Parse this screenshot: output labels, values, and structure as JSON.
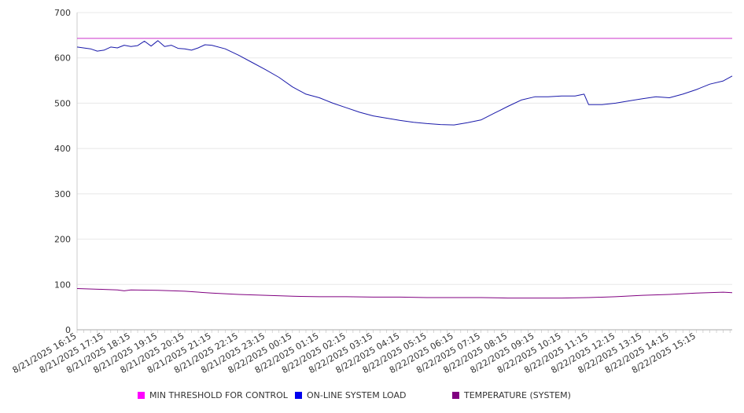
{
  "chart_data": {
    "type": "line",
    "ylim": [
      0,
      700
    ],
    "yticks": [
      0,
      100,
      200,
      300,
      400,
      500,
      600,
      700
    ],
    "grid": true,
    "legend_position": "bottom",
    "xtick_labels": [
      "8/21/2025 16:15",
      "8/21/2025 17:15",
      "8/21/2025 18:15",
      "8/21/2025 19:15",
      "8/21/2025 20:15",
      "8/21/2025 21:15",
      "8/21/2025 22:15",
      "8/21/2025 23:15",
      "8/22/2025 00:15",
      "8/22/2025 01:15",
      "8/22/2025 02:15",
      "8/22/2025 03:15",
      "8/22/2025 04:15",
      "8/22/2025 05:15",
      "8/22/2025 06:15",
      "8/22/2025 07:15",
      "8/22/2025 08:15",
      "8/22/2025 09:15",
      "8/22/2025 10:15",
      "8/22/2025 11:15",
      "8/22/2025 12:15",
      "8/22/2025 13:15",
      "8/22/2025 14:15",
      "8/22/2025 15:15"
    ],
    "x_range": [
      "8/21/2025 16:15",
      "8/22/2025 16:35"
    ],
    "series": [
      {
        "name": "MIN THRESHOLD FOR CONTROL",
        "color": "#cc33cc",
        "swatch": "#ff00ff",
        "points": [
          [
            "8/21/2025 16:15",
            643
          ],
          [
            "8/22/2025 16:35",
            643
          ]
        ]
      },
      {
        "name": "ON-LINE SYSTEM LOAD",
        "color": "#1a1aaa",
        "swatch": "#0000ee",
        "points": [
          [
            "8/21/2025 16:15",
            624
          ],
          [
            "8/21/2025 16:45",
            620
          ],
          [
            "8/21/2025 17:00",
            615
          ],
          [
            "8/21/2025 17:15",
            617
          ],
          [
            "8/21/2025 17:30",
            624
          ],
          [
            "8/21/2025 17:45",
            622
          ],
          [
            "8/21/2025 18:00",
            628
          ],
          [
            "8/21/2025 18:15",
            625
          ],
          [
            "8/21/2025 18:30",
            627
          ],
          [
            "8/21/2025 18:45",
            637
          ],
          [
            "8/21/2025 19:00",
            626
          ],
          [
            "8/21/2025 19:15",
            638
          ],
          [
            "8/21/2025 19:30",
            625
          ],
          [
            "8/21/2025 19:45",
            628
          ],
          [
            "8/21/2025 20:00",
            621
          ],
          [
            "8/21/2025 20:15",
            620
          ],
          [
            "8/21/2025 20:30",
            617
          ],
          [
            "8/21/2025 20:45",
            622
          ],
          [
            "8/21/2025 21:00",
            629
          ],
          [
            "8/21/2025 21:15",
            628
          ],
          [
            "8/21/2025 21:45",
            620
          ],
          [
            "8/21/2025 22:15",
            606
          ],
          [
            "8/21/2025 22:45",
            590
          ],
          [
            "8/21/2025 23:15",
            574
          ],
          [
            "8/21/2025 23:45",
            557
          ],
          [
            "8/22/2025 00:15",
            536
          ],
          [
            "8/22/2025 00:45",
            520
          ],
          [
            "8/22/2025 01:15",
            512
          ],
          [
            "8/22/2025 01:45",
            500
          ],
          [
            "8/22/2025 02:15",
            490
          ],
          [
            "8/22/2025 02:45",
            480
          ],
          [
            "8/22/2025 03:15",
            472
          ],
          [
            "8/22/2025 03:45",
            467
          ],
          [
            "8/22/2025 04:15",
            462
          ],
          [
            "8/22/2025 04:45",
            458
          ],
          [
            "8/22/2025 05:15",
            455
          ],
          [
            "8/22/2025 05:45",
            453
          ],
          [
            "8/22/2025 06:15",
            452
          ],
          [
            "8/22/2025 06:45",
            457
          ],
          [
            "8/22/2025 07:15",
            463
          ],
          [
            "8/22/2025 07:45",
            478
          ],
          [
            "8/22/2025 08:15",
            493
          ],
          [
            "8/22/2025 08:45",
            507
          ],
          [
            "8/22/2025 09:15",
            514
          ],
          [
            "8/22/2025 09:45",
            514
          ],
          [
            "8/22/2025 10:15",
            516
          ],
          [
            "8/22/2025 10:45",
            516
          ],
          [
            "8/22/2025 11:05",
            520
          ],
          [
            "8/22/2025 11:15",
            497
          ],
          [
            "8/22/2025 11:45",
            497
          ],
          [
            "8/22/2025 12:15",
            500
          ],
          [
            "8/22/2025 12:45",
            505
          ],
          [
            "8/22/2025 13:15",
            510
          ],
          [
            "8/22/2025 13:45",
            514
          ],
          [
            "8/22/2025 14:15",
            512
          ],
          [
            "8/22/2025 14:45",
            520
          ],
          [
            "8/22/2025 15:15",
            530
          ],
          [
            "8/22/2025 15:45",
            542
          ],
          [
            "8/22/2025 16:15",
            549
          ],
          [
            "8/22/2025 16:35",
            560
          ]
        ]
      },
      {
        "name": "TEMPERATURE (SYSTEM)",
        "color": "#800080",
        "swatch": "#800080",
        "points": [
          [
            "8/21/2025 16:15",
            91
          ],
          [
            "8/21/2025 17:15",
            89
          ],
          [
            "8/21/2025 17:45",
            88
          ],
          [
            "8/21/2025 18:00",
            86
          ],
          [
            "8/21/2025 18:15",
            88
          ],
          [
            "8/21/2025 19:15",
            87
          ],
          [
            "8/21/2025 20:15",
            85
          ],
          [
            "8/21/2025 21:15",
            81
          ],
          [
            "8/21/2025 22:15",
            78
          ],
          [
            "8/21/2025 23:15",
            76
          ],
          [
            "8/22/2025 00:15",
            74
          ],
          [
            "8/22/2025 01:15",
            73
          ],
          [
            "8/22/2025 02:15",
            73
          ],
          [
            "8/22/2025 03:15",
            72
          ],
          [
            "8/22/2025 04:15",
            72
          ],
          [
            "8/22/2025 05:15",
            71
          ],
          [
            "8/22/2025 06:15",
            71
          ],
          [
            "8/22/2025 07:15",
            71
          ],
          [
            "8/22/2025 08:15",
            70
          ],
          [
            "8/22/2025 09:15",
            70
          ],
          [
            "8/22/2025 10:15",
            70
          ],
          [
            "8/22/2025 11:15",
            71
          ],
          [
            "8/22/2025 12:15",
            73
          ],
          [
            "8/22/2025 13:15",
            76
          ],
          [
            "8/22/2025 14:15",
            78
          ],
          [
            "8/22/2025 15:15",
            81
          ],
          [
            "8/22/2025 16:15",
            83
          ],
          [
            "8/22/2025 16:35",
            82
          ]
        ]
      }
    ]
  }
}
